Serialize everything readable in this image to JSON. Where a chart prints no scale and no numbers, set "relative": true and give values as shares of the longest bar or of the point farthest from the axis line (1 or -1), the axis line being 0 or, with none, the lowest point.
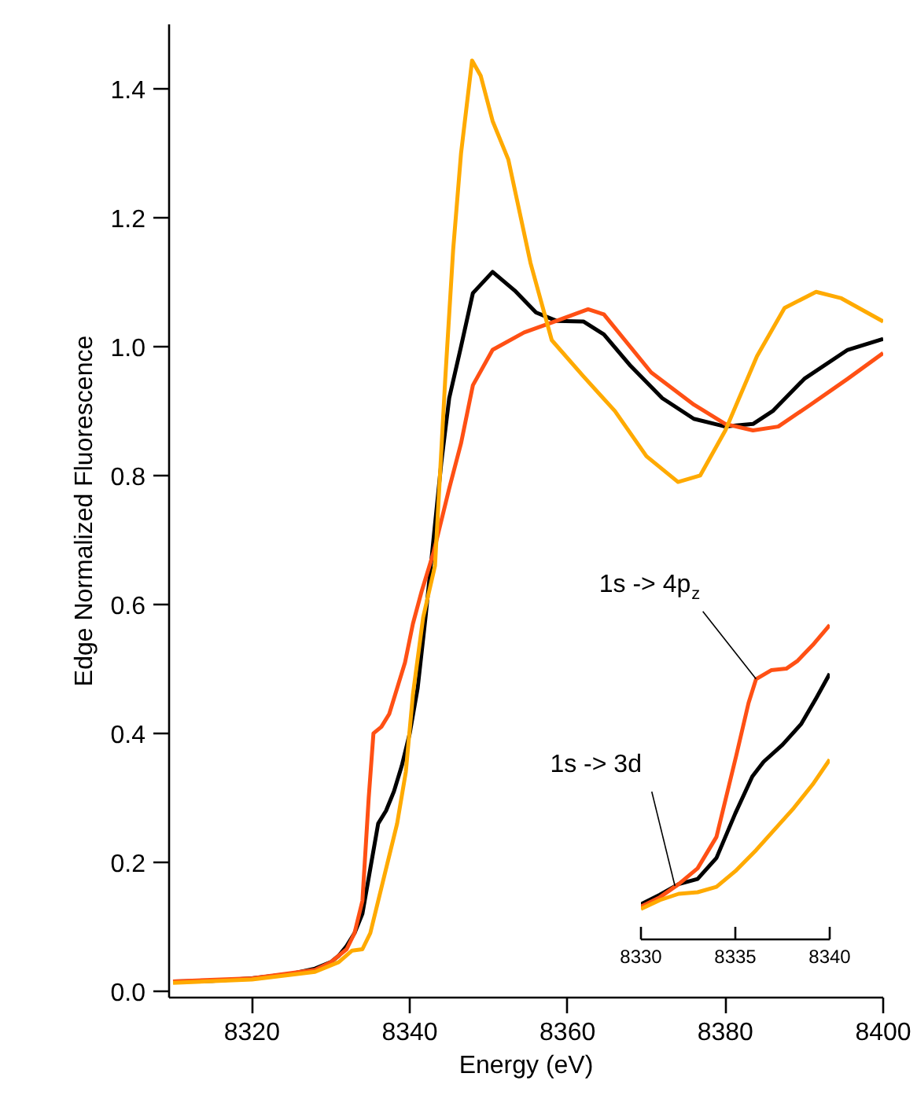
{
  "chart_data": [
    {
      "type": "line",
      "xlabel": "Energy (eV)",
      "ylabel": "Edge Normalized Fluorescence",
      "xlim": [
        8309.5,
        8400
      ],
      "ylim": [
        -0.01,
        1.5
      ],
      "xticks": [
        8320,
        8340,
        8360,
        8380,
        8400
      ],
      "yticks": [
        {
          "value": 0,
          "label": "0.0"
        },
        0.2,
        0.4,
        0.6,
        0.8,
        {
          "value": 1,
          "label": "1.0"
        },
        1.2,
        1.4
      ],
      "series": [
        {
          "color": "#000000",
          "x": [
            8310,
            8315,
            8320,
            8325,
            8328,
            8330,
            8331,
            8332,
            8333,
            8334,
            8335,
            8336,
            8337,
            8338,
            8339,
            8340,
            8341,
            8342,
            8343,
            8344,
            8345,
            8346.5,
            8348,
            8350.5,
            8353.3,
            8356,
            8358.6,
            8362,
            8364.6,
            8368,
            8372,
            8376,
            8380,
            8383.5,
            8386,
            8390,
            8395.5,
            8400
          ],
          "values": [
            0.015,
            0.016,
            0.02,
            0.027,
            0.035,
            0.045,
            0.055,
            0.07,
            0.09,
            0.12,
            0.19,
            0.26,
            0.28,
            0.31,
            0.35,
            0.4,
            0.47,
            0.58,
            0.7,
            0.82,
            0.92,
            1.0,
            1.083,
            1.116,
            1.087,
            1.053,
            1.04,
            1.039,
            1.019,
            0.97,
            0.92,
            0.888,
            0.876,
            0.88,
            0.9,
            0.95,
            0.995,
            1.012
          ]
        },
        {
          "color": "#ff5014",
          "x": [
            8310,
            8320,
            8328,
            8330,
            8332,
            8333,
            8334,
            8334.8,
            8335.4,
            8336.4,
            8337.4,
            8338.4,
            8339.4,
            8340.4,
            8341.5,
            8343,
            8345,
            8346.5,
            8348,
            8350.5,
            8354.5,
            8358.6,
            8362.6,
            8364.6,
            8370.6,
            8376,
            8380,
            8383.5,
            8386.7,
            8390.8,
            8395.5,
            8400
          ],
          "values": [
            0.015,
            0.02,
            0.033,
            0.045,
            0.065,
            0.09,
            0.14,
            0.3,
            0.4,
            0.41,
            0.43,
            0.47,
            0.51,
            0.57,
            0.62,
            0.68,
            0.78,
            0.85,
            0.94,
            0.995,
            1.022,
            1.04,
            1.058,
            1.05,
            0.96,
            0.91,
            0.88,
            0.87,
            0.876,
            0.91,
            0.95,
            0.99
          ]
        },
        {
          "color": "#ffaa00",
          "x": [
            8310,
            8320,
            8328,
            8331,
            8332.7,
            8334,
            8335,
            8336.4,
            8338.4,
            8339.5,
            8340.4,
            8341.7,
            8343.2,
            8344.5,
            8345.5,
            8346.5,
            8347.9,
            8349,
            8350.5,
            8352.5,
            8355.3,
            8358,
            8362,
            8366,
            8370,
            8374,
            8376.8,
            8380,
            8384,
            8387.5,
            8391.5,
            8394.7,
            8400
          ],
          "values": [
            0.013,
            0.018,
            0.03,
            0.045,
            0.063,
            0.065,
            0.09,
            0.16,
            0.26,
            0.34,
            0.46,
            0.58,
            0.66,
            0.95,
            1.15,
            1.3,
            1.444,
            1.42,
            1.35,
            1.29,
            1.13,
            1.01,
            0.954,
            0.9,
            0.83,
            0.79,
            0.8,
            0.87,
            0.985,
            1.06,
            1.085,
            1.075,
            1.039
          ]
        }
      ]
    },
    {
      "type": "line",
      "relative": true,
      "xlim": [
        8330,
        8340
      ],
      "xticks": [
        8330,
        8335,
        8340
      ],
      "tick_labels": "x",
      "series": [
        {
          "color": "#000000",
          "x": [
            8330,
            8331,
            8332,
            8333,
            8334,
            8335,
            8335.9,
            8336.5,
            8337.5,
            8338.5,
            8339.3,
            8340
          ],
          "values": [
            0.112,
            0.142,
            0.176,
            0.192,
            0.259,
            0.401,
            0.518,
            0.565,
            0.619,
            0.686,
            0.769,
            0.845
          ]
        },
        {
          "color": "#ff5014",
          "x": [
            8330,
            8331,
            8332,
            8333,
            8334,
            8335.05,
            8335.7,
            8336.1,
            8336.9,
            8337.7,
            8338.3,
            8339.1,
            8340
          ],
          "values": [
            0.104,
            0.134,
            0.176,
            0.226,
            0.326,
            0.585,
            0.752,
            0.828,
            0.856,
            0.861,
            0.886,
            0.936,
            1.0
          ]
        },
        {
          "color": "#ffaa00",
          "x": [
            8330,
            8331,
            8332,
            8333,
            8334,
            8335,
            8336.1,
            8337.1,
            8338.1,
            8339.1,
            8340
          ],
          "values": [
            0.097,
            0.125,
            0.145,
            0.15,
            0.167,
            0.217,
            0.284,
            0.351,
            0.418,
            0.493,
            0.572
          ]
        }
      ],
      "annotations": [
        {
          "text": "1s -> 4p$_{z}$",
          "x": 8336.1,
          "y": 0.828
        },
        {
          "text": "1s -> 3d",
          "x": 8331.8,
          "y": 0.17
        }
      ]
    }
  ]
}
